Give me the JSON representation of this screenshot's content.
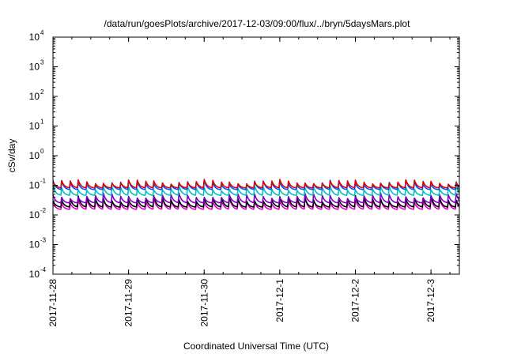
{
  "chart_data": {
    "type": "line",
    "title": "/data/run/goesPlots/archive/2017-12-03/09:00/flux/../bryn/5daysMars.plot",
    "xlabel": "Coordinated Universal Time (UTC)",
    "ylabel": "cSv/day",
    "scale_y": "log",
    "xlim": [
      "2017-11-28",
      "2017-12-03T09:00"
    ],
    "ylim": [
      0.0001,
      10000
    ],
    "x_ticks": [
      "2017-11-28",
      "2017-11-29",
      "2017-11-30",
      "2017-12-1",
      "2017-12-2",
      "2017-12-3"
    ],
    "y_ticks": [
      {
        "base": "10",
        "exp": "-4"
      },
      {
        "base": "10",
        "exp": "-3"
      },
      {
        "base": "10",
        "exp": "-2"
      },
      {
        "base": "10",
        "exp": "-1"
      },
      {
        "base": "10",
        "exp": "0"
      },
      {
        "base": "10",
        "exp": "1"
      },
      {
        "base": "10",
        "exp": "2"
      },
      {
        "base": "10",
        "exp": "3"
      },
      {
        "base": "10",
        "exp": "4"
      }
    ],
    "grid": false,
    "legend": "none",
    "series_colors": [
      "#e00000",
      "#0055ff",
      "#00c0c0",
      "#7a00c8",
      "#e000c8",
      "#000000"
    ],
    "series": [
      {
        "color": "#e00000",
        "x_first": "2017-11-28",
        "x_last": "2017-12-03T09:00",
        "y_range": [
          0.08,
          0.16
        ],
        "cycles_per_day": 9
      },
      {
        "color": "#0055ff",
        "x_first": "2017-11-28",
        "x_last": "2017-12-03T09:00",
        "y_range": [
          0.07,
          0.15
        ],
        "cycles_per_day": 9
      },
      {
        "color": "#00c0c0",
        "x_first": "2017-11-28",
        "x_last": "2017-12-03T09:00",
        "y_range": [
          0.045,
          0.1
        ],
        "cycles_per_day": 9
      },
      {
        "color": "#7a00c8",
        "x_first": "2017-11-28",
        "x_last": "2017-12-03T09:00",
        "y_range": [
          0.025,
          0.055
        ],
        "cycles_per_day": 9
      },
      {
        "color": "#e000c8",
        "x_first": "2017-11-28",
        "x_last": "2017-12-03T09:00",
        "y_range": [
          0.015,
          0.04
        ],
        "cycles_per_day": 9
      },
      {
        "color": "#000000",
        "x_first": "2017-11-28",
        "x_last": "2017-12-03T09:00",
        "y_range": [
          0.018,
          0.045
        ],
        "cycles_per_day": 9
      }
    ]
  }
}
